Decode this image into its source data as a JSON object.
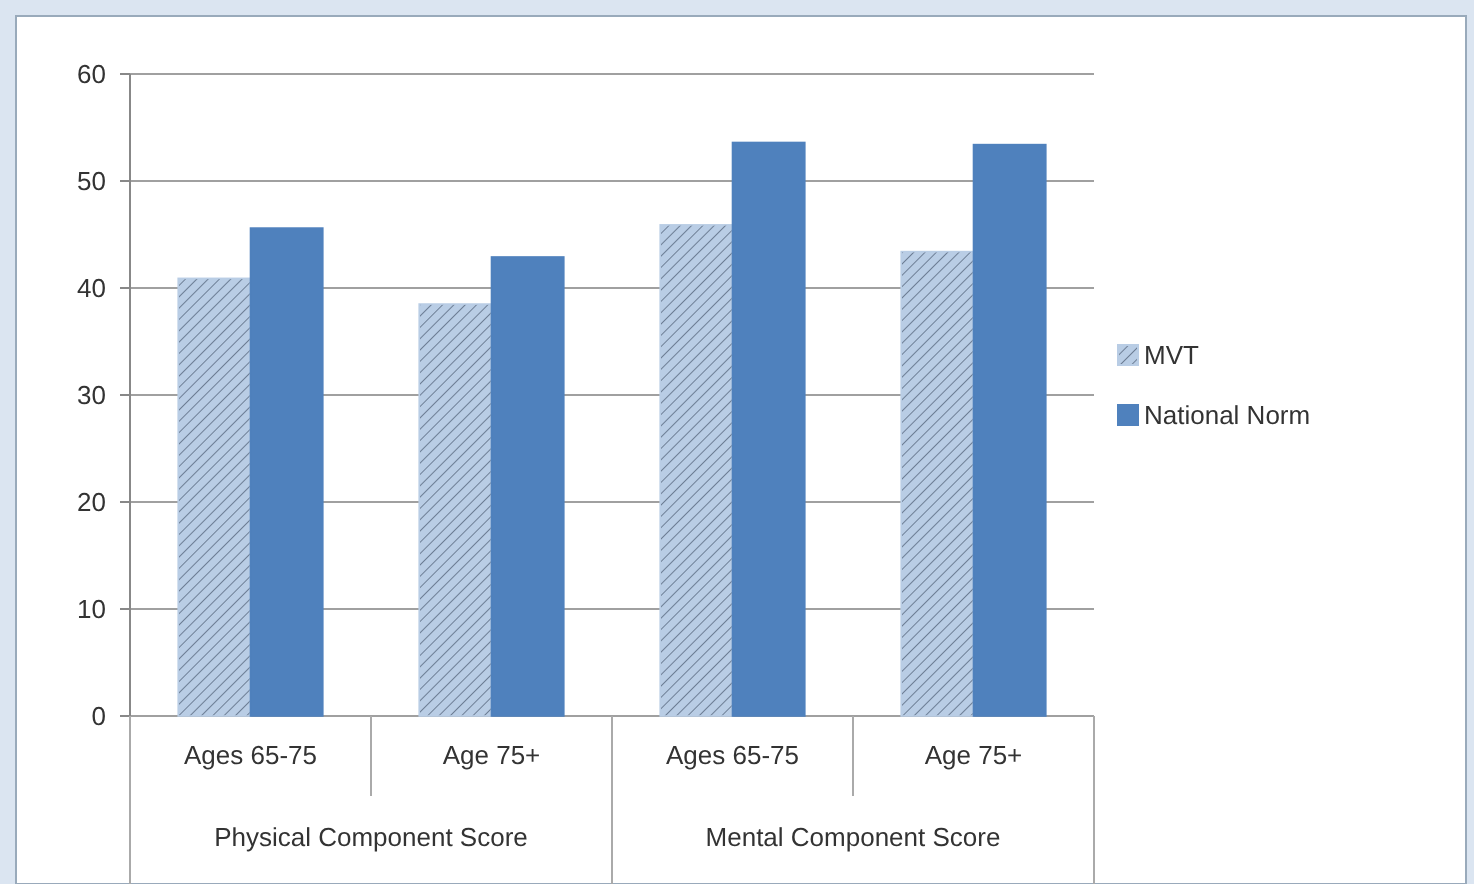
{
  "chart_data": {
    "type": "bar",
    "categories": [
      "Ages 65-75",
      "Age 75+",
      "Ages 65-75",
      "Age 75+"
    ],
    "series": [
      {
        "name": "MVT",
        "color": "#b9cde5",
        "values": [
          40.9,
          38.5,
          45.9,
          43.4
        ]
      },
      {
        "name": "National Norm",
        "color": "#4f81bd",
        "values": [
          45.6,
          42.9,
          53.6,
          53.4
        ]
      }
    ],
    "ylim": [
      0,
      60
    ],
    "yticks": [
      0,
      10,
      20,
      30,
      40,
      50,
      60
    ],
    "grid": "y",
    "legend": "right",
    "annotations": [
      "Physical Component Score",
      "Mental Component Score"
    ]
  }
}
